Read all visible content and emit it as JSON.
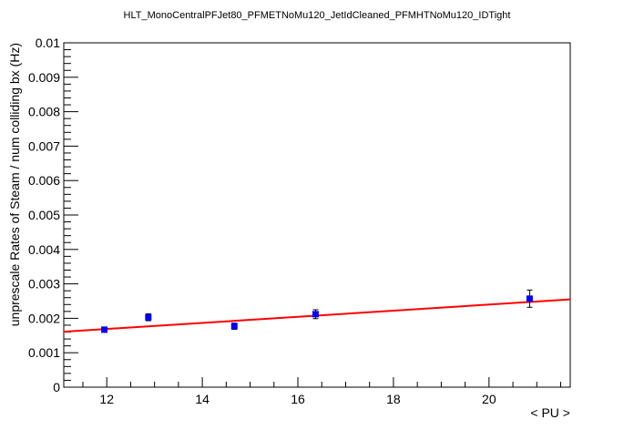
{
  "chart_data": {
    "type": "scatter",
    "title": "HLT_MonoCentralPFJet80_PFMETNoMu120_JetIdCleaned_PFMHTNoMu120_IDTight",
    "xlabel": "< PU >",
    "ylabel": "unprescale Rates of Steam / num colliding bx (Hz)",
    "xlim": [
      11.1,
      21.7
    ],
    "ylim": [
      0,
      0.01
    ],
    "x_ticks": [
      12,
      14,
      16,
      18,
      20
    ],
    "x_tick_labels": [
      "12",
      "14",
      "16",
      "18",
      "20"
    ],
    "y_ticks": [
      0,
      0.001,
      0.002,
      0.003,
      0.004,
      0.005,
      0.006,
      0.007,
      0.008,
      0.009,
      0.01
    ],
    "y_tick_labels": [
      "0",
      "0.001",
      "0.002",
      "0.003",
      "0.004",
      "0.005",
      "0.006",
      "0.007",
      "0.008",
      "0.009",
      "0.01"
    ],
    "grid": false,
    "legend": "none",
    "points": [
      {
        "x": 11.95,
        "y": 0.00167,
        "yerr": 6e-05
      },
      {
        "x": 12.87,
        "y": 0.00203,
        "yerr": 0.0001
      },
      {
        "x": 14.67,
        "y": 0.00177,
        "yerr": 9e-05
      },
      {
        "x": 16.37,
        "y": 0.00212,
        "yerr": 0.00013
      },
      {
        "x": 20.85,
        "y": 0.00257,
        "yerr": 0.00025
      }
    ],
    "fit": {
      "x": [
        11.1,
        21.7
      ],
      "y": [
        0.00161,
        0.00255
      ]
    },
    "colors": {
      "points": "#0000ff",
      "fit": "#ff0000",
      "axis": "#000000"
    }
  }
}
